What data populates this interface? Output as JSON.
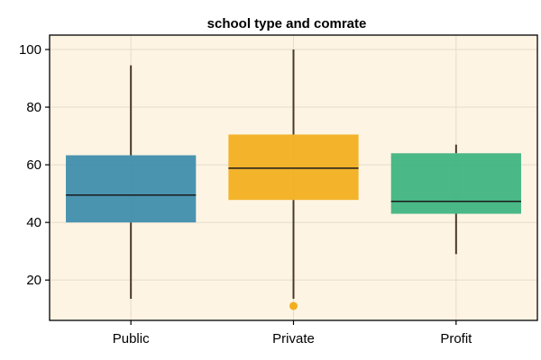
{
  "chart_data": {
    "type": "boxplot",
    "title": "school type and comrate",
    "xlabel": "",
    "ylabel": "",
    "categories": [
      "Public",
      "Private",
      "Profit"
    ],
    "ylim": [
      6,
      105
    ],
    "yticks": [
      20,
      40,
      60,
      80,
      100
    ],
    "grid": true,
    "background_color": "#fef4e3",
    "boxes": [
      {
        "category": "Public",
        "min": 13.5,
        "q1": 40,
        "median": 49.5,
        "q3": 63.3,
        "max": 94.5,
        "outliers": [],
        "color": "#3b8bab"
      },
      {
        "category": "Private",
        "min": 13.5,
        "q1": 47.8,
        "median": 58.8,
        "q3": 70.5,
        "max": 100,
        "outliers": [
          11
        ],
        "color": "#f2ae1c"
      },
      {
        "category": "Profit",
        "min": 29,
        "q1": 43,
        "median": 47.3,
        "q3": 64,
        "max": 67,
        "outliers": [],
        "color": "#3bb27f"
      }
    ]
  }
}
